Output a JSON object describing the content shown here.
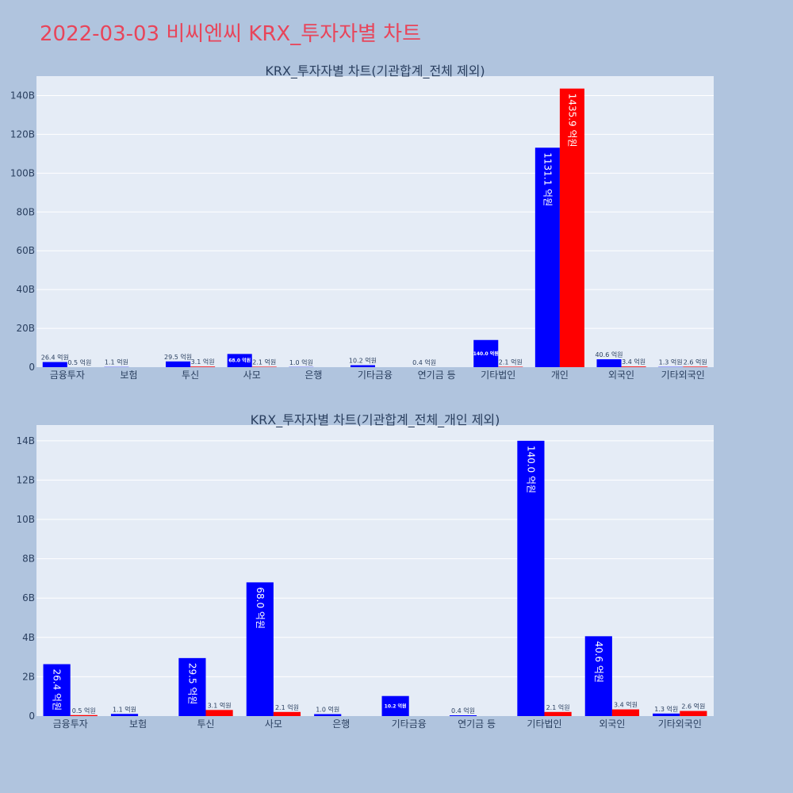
{
  "page": {
    "title": "2022-03-03 비씨엔씨 KRX_투자자별 차트",
    "background": "#b0c4de",
    "plot_background": "#e5ecf6",
    "title_color": "#e8455a"
  },
  "chart_data": [
    {
      "type": "bar",
      "title": "KRX_투자자별 차트(기관합계_전체 제외)",
      "categories": [
        "금융투자",
        "보험",
        "투신",
        "사모",
        "은행",
        "기타금융",
        "연기금 등",
        "기타법인",
        "개인",
        "외국인",
        "기타외국인"
      ],
      "y_tick_labels": [
        "0",
        "20B",
        "40B",
        "60B",
        "80B",
        "100B",
        "120B",
        "140B"
      ],
      "ylim": [
        0,
        150000000000
      ],
      "grid": true,
      "legend": "none",
      "series": [
        {
          "color": "#0000ff",
          "values": [
            2640000000,
            110000000,
            2950000000,
            6800000000,
            100000000,
            1020000000,
            40000000,
            14000000000,
            113110000000,
            4060000000,
            130000000
          ],
          "labels": [
            "26.4 억원",
            "1.1 억원",
            "29.5 억원",
            "68.0 억원",
            "1.0 억원",
            "10.2 억원",
            "0.4 억원",
            "140.0 억원",
            "1131.1 억원",
            "40.6 억원",
            "1.3 억원"
          ]
        },
        {
          "color": "#ff0000",
          "values": [
            50000000,
            0,
            310000000,
            210000000,
            0,
            0,
            0,
            210000000,
            143590000000,
            340000000,
            260000000
          ],
          "labels": [
            "0.5 억원",
            "",
            "3.1 억원",
            "2.1 억원",
            "",
            "",
            "",
            "2.1 억원",
            "1435.9 억원",
            "3.4 억원",
            "2.6 억원"
          ]
        }
      ]
    },
    {
      "type": "bar",
      "title": "KRX_투자자별 차트(기관합계_전체_개인 제외)",
      "categories": [
        "금융투자",
        "보험",
        "투신",
        "사모",
        "은행",
        "기타금융",
        "연기금 등",
        "기타법인",
        "외국인",
        "기타외국인"
      ],
      "y_tick_labels": [
        "0",
        "2B",
        "4B",
        "6B",
        "8B",
        "10B",
        "12B",
        "14B"
      ],
      "ylim": [
        0,
        14800000000
      ],
      "grid": true,
      "legend": "none",
      "series": [
        {
          "color": "#0000ff",
          "values": [
            2640000000,
            110000000,
            2950000000,
            6800000000,
            100000000,
            1020000000,
            40000000,
            14000000000,
            4060000000,
            130000000
          ],
          "labels": [
            "26.4 억원",
            "1.1 억원",
            "29.5 억원",
            "68.0 억원",
            "1.0 억원",
            "10.2 억원",
            "0.4 억원",
            "140.0 억원",
            "40.6 억원",
            "1.3 억원"
          ]
        },
        {
          "color": "#ff0000",
          "values": [
            50000000,
            0,
            310000000,
            210000000,
            0,
            0,
            0,
            210000000,
            340000000,
            260000000
          ],
          "labels": [
            "0.5 억원",
            "",
            "3.1 억원",
            "2.1 억원",
            "",
            "",
            "",
            "2.1 억원",
            "3.4 억원",
            "2.6 억원"
          ]
        }
      ]
    }
  ]
}
